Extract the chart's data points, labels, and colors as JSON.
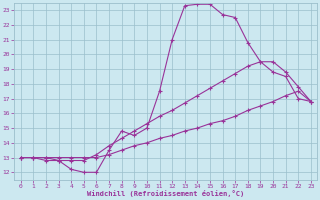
{
  "xlabel": "Windchill (Refroidissement éolien,°C)",
  "bg_color": "#cce8f0",
  "grid_color": "#9bbfcc",
  "line_color": "#993399",
  "xlim": [
    -0.5,
    23.5
  ],
  "ylim": [
    11.5,
    23.5
  ],
  "yticks": [
    12,
    13,
    14,
    15,
    16,
    17,
    18,
    19,
    20,
    21,
    22,
    23
  ],
  "xticks": [
    0,
    1,
    2,
    3,
    4,
    5,
    6,
    7,
    8,
    9,
    10,
    11,
    12,
    13,
    14,
    15,
    16,
    17,
    18,
    19,
    20,
    21,
    22,
    23
  ],
  "curve1_x": [
    0,
    1,
    2,
    3,
    4,
    5,
    6,
    7,
    8,
    9,
    10,
    11,
    12,
    13,
    14,
    15,
    16,
    17,
    18,
    19,
    20,
    21,
    22,
    23
  ],
  "curve1_y": [
    13.0,
    13.0,
    12.8,
    12.8,
    12.2,
    12.0,
    12.0,
    13.5,
    14.8,
    14.5,
    15.0,
    17.5,
    21.0,
    23.3,
    23.4,
    23.4,
    22.7,
    22.5,
    20.8,
    19.5,
    18.8,
    18.5,
    17.0,
    16.8
  ],
  "curve2_x": [
    0,
    1,
    2,
    3,
    4,
    5,
    6,
    7,
    8,
    9,
    10,
    11,
    12,
    13,
    14,
    15,
    16,
    17,
    18,
    19,
    20,
    21,
    22,
    23
  ],
  "curve2_y": [
    13.0,
    13.0,
    13.0,
    12.8,
    12.8,
    12.8,
    13.2,
    13.8,
    14.3,
    14.8,
    15.3,
    15.8,
    16.2,
    16.7,
    17.2,
    17.7,
    18.2,
    18.7,
    19.2,
    19.5,
    19.5,
    18.8,
    17.8,
    16.8
  ],
  "curve3_x": [
    0,
    1,
    2,
    3,
    4,
    5,
    6,
    7,
    8,
    9,
    10,
    11,
    12,
    13,
    14,
    15,
    16,
    17,
    18,
    19,
    20,
    21,
    22,
    23
  ],
  "curve3_y": [
    13.0,
    13.0,
    13.0,
    13.0,
    13.0,
    13.0,
    13.0,
    13.2,
    13.5,
    13.8,
    14.0,
    14.3,
    14.5,
    14.8,
    15.0,
    15.3,
    15.5,
    15.8,
    16.2,
    16.5,
    16.8,
    17.2,
    17.5,
    16.8
  ]
}
